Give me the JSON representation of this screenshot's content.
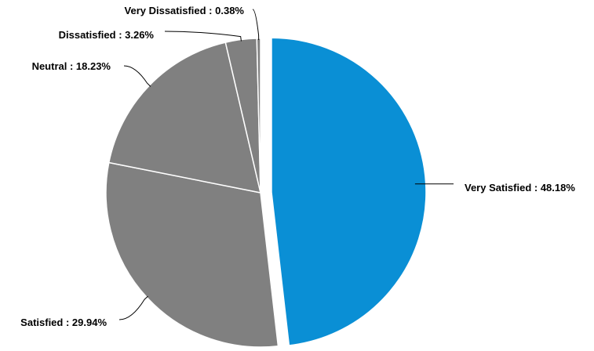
{
  "chart_data": {
    "type": "pie",
    "title": "",
    "slices": [
      {
        "label": "Very Satisfied",
        "value": 48.18,
        "display": "Very Satisfied : 48.18%",
        "color": "#0a8fd5",
        "exploded": true
      },
      {
        "label": "Satisfied",
        "value": 29.94,
        "display": "Satisfied : 29.94%",
        "color": "#808080",
        "exploded": false
      },
      {
        "label": "Neutral",
        "value": 18.23,
        "display": "Neutral : 18.23%",
        "color": "#808080",
        "exploded": false
      },
      {
        "label": "Dissatisfied",
        "value": 3.26,
        "display": "Dissatisfied : 3.26%",
        "color": "#808080",
        "exploded": false
      },
      {
        "label": "Very Dissatisfied",
        "value": 0.38,
        "display": "Very Dissatisfied : 0.38%",
        "color": "#808080",
        "exploded": false
      }
    ],
    "start_angle": "top",
    "direction": "clockwise",
    "legend": "none",
    "slice_border_color": "#ffffff",
    "leader_line_color": "#000000"
  }
}
